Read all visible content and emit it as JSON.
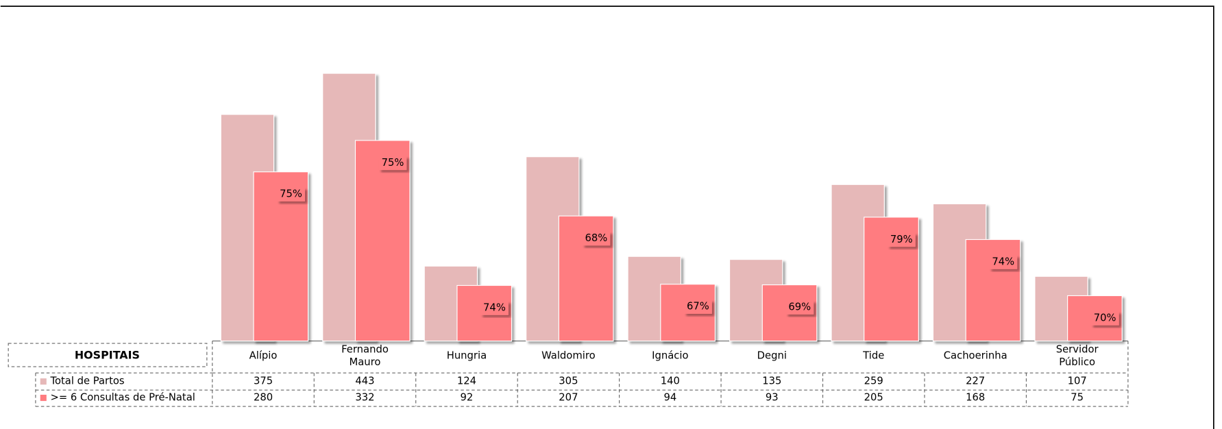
{
  "chart_data": {
    "type": "bar",
    "categories": [
      "Alípio",
      "Fernando Mauro",
      "Hungria",
      "Waldomiro",
      "Ignácio",
      "Degni",
      "Tide",
      "Cachoerinha",
      "Servidor Público"
    ],
    "series": [
      {
        "name": "Total de Partos",
        "color": "#e6b8b8",
        "values": [
          375,
          443,
          124,
          305,
          140,
          135,
          259,
          227,
          107
        ]
      },
      {
        "name": ">= 6 Consultas de Pré-Natal",
        "color": "#ff7c80",
        "values": [
          280,
          332,
          92,
          207,
          94,
          93,
          205,
          168,
          75
        ]
      }
    ],
    "annotations": [
      "75%",
      "75%",
      "74%",
      "68%",
      "67%",
      "69%",
      "79%",
      "74%",
      "70%"
    ],
    "table_header": "HOSPITAIS",
    "ylim": [
      0,
      500
    ]
  }
}
